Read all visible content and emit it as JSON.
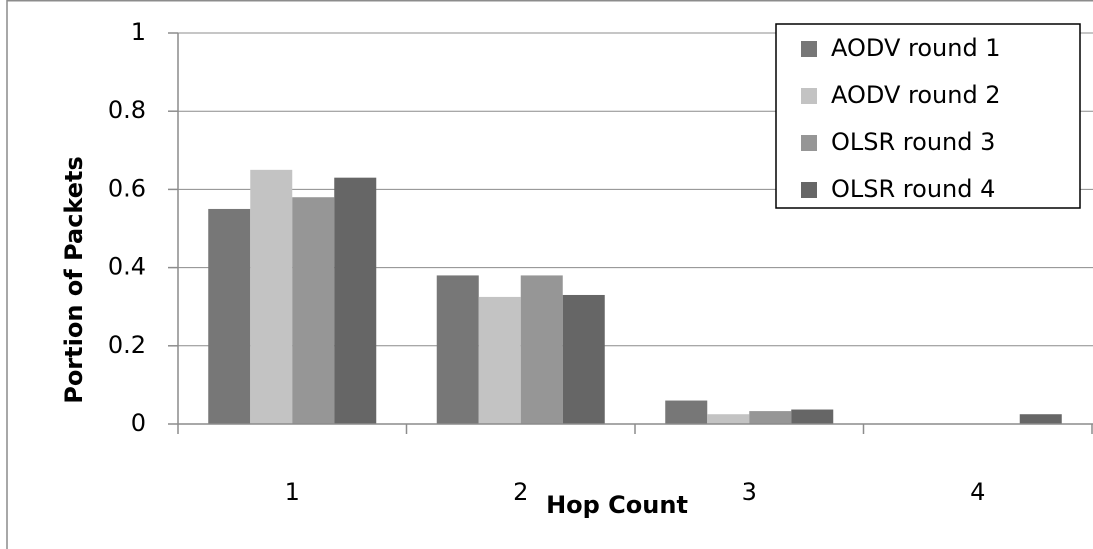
{
  "chart_data": {
    "type": "bar",
    "x_label": "Hop Count",
    "y_label": "Portion of Packets",
    "categories": [
      "1",
      "2",
      "3",
      "4"
    ],
    "series": [
      {
        "name": "AODV round 1",
        "color": "#777777",
        "values": [
          0.55,
          0.38,
          0.06,
          0
        ]
      },
      {
        "name": "AODV round 2",
        "color": "#c3c3c3",
        "values": [
          0.65,
          0.325,
          0.025,
          0
        ]
      },
      {
        "name": "OLSR round 3",
        "color": "#969696",
        "values": [
          0.58,
          0.38,
          0.033,
          0
        ]
      },
      {
        "name": "OLSR round 4",
        "color": "#666666",
        "values": [
          0.63,
          0.33,
          0.037,
          0.025
        ]
      }
    ],
    "ylim": [
      0,
      1
    ],
    "yticks": [
      0,
      0.2,
      0.4,
      0.6,
      0.8,
      1
    ],
    "grid": true,
    "legend": "top-right"
  }
}
